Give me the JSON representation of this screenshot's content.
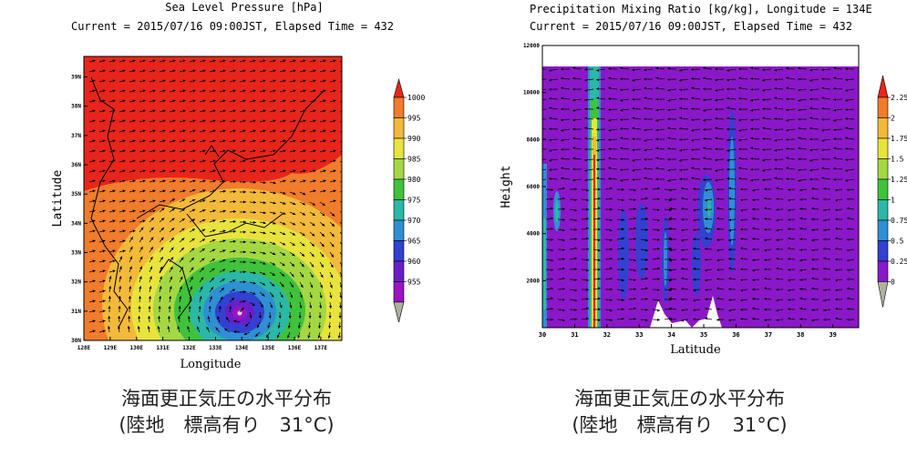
{
  "left": {
    "title": "Sea Level Pressure [hPa]",
    "subtitle": "Current = 2015/07/16 09:00JST, Elapsed Time = 432",
    "caption_line1": "海面更正気圧の水平分布",
    "caption_line2": "(陸地　標高有り　31°C)"
  },
  "right": {
    "title": "Precipitation Mixing Ratio [kg/kg], Longitude = 134E",
    "subtitle": "Current = 2015/07/16 09:00JST, Elapsed Time = 432",
    "caption_line1": "海面更正気圧の水平分布",
    "caption_line2": "(陸地　標高有り　31°C)"
  },
  "chart_data": [
    {
      "type": "heatmap",
      "title": "Sea Level Pressure [hPa]",
      "subtitle": "Current = 2015/07/16 09:00JST, Elapsed Time = 432",
      "xlabel": "Longitude",
      "ylabel": "Latitude",
      "x_ticks": [
        "128E",
        "129E",
        "130E",
        "131E",
        "132E",
        "133E",
        "134E",
        "135E",
        "136E",
        "137E"
      ],
      "y_ticks": [
        "30N",
        "31N",
        "32N",
        "33N",
        "34N",
        "35N",
        "36N",
        "37N",
        "38N",
        "39N"
      ],
      "xlim": [
        128,
        137.8
      ],
      "ylim": [
        30,
        39.7
      ],
      "center": {
        "lon": 134,
        "lat": 30.9
      },
      "colorbar": {
        "labels": [
          "1000",
          "995",
          "990",
          "985",
          "980",
          "975",
          "970",
          "965",
          "960",
          "955"
        ],
        "colors": [
          "#e8251b",
          "#f07c2c",
          "#f3b93a",
          "#e8e33d",
          "#a4d843",
          "#3fc23c",
          "#2bb8a6",
          "#2f8fd3",
          "#3340d0",
          "#6a1ec8",
          "#9b13c2",
          "#b0b0a0"
        ]
      }
    },
    {
      "type": "heatmap",
      "title": "Precipitation Mixing Ratio [kg/kg], Longitude = 134E",
      "subtitle": "Current = 2015/07/16 09:00JST, Elapsed Time = 432",
      "xlabel": "Latitude",
      "ylabel": "Height",
      "x_ticks": [
        "30",
        "31",
        "32",
        "33",
        "34",
        "35",
        "36",
        "37",
        "38",
        "39"
      ],
      "y_ticks": [
        "2000",
        "4000",
        "6000",
        "8000",
        "10000",
        "12000"
      ],
      "xlim": [
        30,
        39.8
      ],
      "ylim": [
        0,
        12000
      ],
      "colorbar": {
        "labels": [
          "2.25",
          "2",
          "1.75",
          "1.5",
          "1.25",
          "1",
          "0.75",
          "0.5",
          "0.25",
          "0"
        ],
        "colors": [
          "#e8251b",
          "#f07c2c",
          "#f3b93a",
          "#e8e33d",
          "#a4d843",
          "#3fc23c",
          "#2bb8a6",
          "#2f8fd3",
          "#3340d0",
          "#8a18c8",
          "#b0b0a0"
        ]
      }
    }
  ]
}
